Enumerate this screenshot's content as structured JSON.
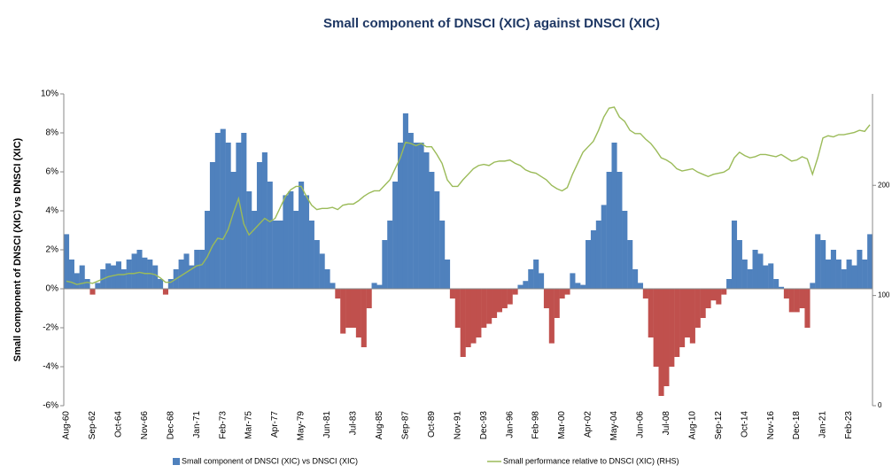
{
  "chart_data": {
    "type": "bar-line",
    "title": "Small component of DNSCI (XIC) against DNSCI (XIC)",
    "y_label": "Small component of DNSCI (XIC) vs DNSCI (XIC)",
    "categories": [
      "Aug-60",
      null,
      null,
      null,
      null,
      "Sep-62",
      null,
      null,
      null,
      null,
      "Oct-64",
      null,
      null,
      null,
      null,
      "Nov-66",
      null,
      null,
      null,
      null,
      "Dec-68",
      null,
      null,
      null,
      null,
      "Jan-71",
      null,
      null,
      null,
      null,
      "Feb-73",
      null,
      null,
      null,
      null,
      "Mar-75",
      null,
      null,
      null,
      null,
      "Apr-77",
      null,
      null,
      null,
      null,
      "May-79",
      null,
      null,
      null,
      null,
      "Jun-81",
      null,
      null,
      null,
      null,
      "Jul-83",
      null,
      null,
      null,
      null,
      "Aug-85",
      null,
      null,
      null,
      null,
      "Sep-87",
      null,
      null,
      null,
      null,
      "Oct-89",
      null,
      null,
      null,
      null,
      "Nov-91",
      null,
      null,
      null,
      null,
      "Dec-93",
      null,
      null,
      null,
      null,
      "Jan-96",
      null,
      null,
      null,
      null,
      "Feb-98",
      null,
      null,
      null,
      null,
      "Mar-00",
      null,
      null,
      null,
      null,
      "Apr-02",
      null,
      null,
      null,
      null,
      "May-04",
      null,
      null,
      null,
      null,
      "Jun-06",
      null,
      null,
      null,
      null,
      "Jul-08",
      null,
      null,
      null,
      null,
      "Aug-10",
      null,
      null,
      null,
      null,
      "Sep-12",
      null,
      null,
      null,
      null,
      "Oct-14",
      null,
      null,
      null,
      null,
      "Nov-16",
      null,
      null,
      null,
      null,
      "Dec-18",
      null,
      null,
      null,
      null,
      "Jan-21",
      null,
      null,
      null,
      null,
      "Feb-23",
      null,
      null,
      null,
      null
    ],
    "series": [
      {
        "name": "Small component of DNSCI (XIC) vs DNSCI (XIC)",
        "kind": "bar",
        "color": "#4f81bd",
        "negative_color": "#c0504d",
        "values": [
          2.8,
          1.5,
          0.8,
          1.2,
          0.5,
          -0.3,
          0.3,
          1.0,
          1.3,
          1.2,
          1.4,
          1.0,
          1.5,
          1.8,
          2.0,
          1.6,
          1.5,
          1.2,
          0.5,
          -0.3,
          0.5,
          1.0,
          1.5,
          1.8,
          1.2,
          2.0,
          2.0,
          4.0,
          6.5,
          8.0,
          8.2,
          7.5,
          6.0,
          7.5,
          8.0,
          5.0,
          4.0,
          6.5,
          7.0,
          5.5,
          3.5,
          3.5,
          4.8,
          5.0,
          4.0,
          5.5,
          4.8,
          3.5,
          2.5,
          1.8,
          1.0,
          0.3,
          -0.5,
          -2.3,
          -2.0,
          -2.0,
          -2.5,
          -3.0,
          -1.0,
          0.3,
          0.2,
          2.5,
          3.5,
          5.5,
          7.5,
          9.0,
          8.0,
          7.5,
          7.5,
          7.0,
          6.0,
          5.0,
          3.5,
          1.5,
          -0.5,
          -2.0,
          -3.5,
          -3.0,
          -2.8,
          -2.5,
          -2.0,
          -1.8,
          -1.5,
          -1.2,
          -1.0,
          -0.8,
          -0.3,
          0.2,
          0.4,
          1.0,
          1.5,
          0.8,
          -1.0,
          -2.8,
          -1.5,
          -0.5,
          -0.3,
          0.8,
          0.3,
          0.2,
          2.5,
          3.0,
          3.5,
          4.3,
          6.0,
          7.5,
          6.0,
          4.0,
          2.5,
          1.0,
          0.3,
          -0.5,
          -2.5,
          -4.0,
          -5.5,
          -5.0,
          -4.0,
          -3.5,
          -3.0,
          -2.5,
          -2.8,
          -2.0,
          -1.5,
          -1.0,
          -0.6,
          -0.8,
          -0.3,
          0.5,
          3.5,
          2.5,
          1.5,
          1.0,
          2.0,
          1.8,
          1.2,
          1.3,
          0.5,
          0.1,
          -0.5,
          -1.2,
          -1.2,
          -1.0,
          -2.0,
          0.3,
          2.8,
          2.5,
          1.5,
          2.0,
          1.5,
          1.0,
          1.5,
          1.2,
          2.0,
          1.5,
          2.8
        ]
      },
      {
        "name": "Small performance relative to DNSCI (XIC) (RHS)",
        "kind": "line",
        "axis": "y2",
        "color": "#9bbb59",
        "values": [
          113,
          112,
          110,
          111,
          112,
          111,
          113,
          115,
          117,
          118,
          119,
          119,
          120,
          120,
          121,
          120,
          120,
          119,
          116,
          112,
          112,
          115,
          118,
          121,
          124,
          127,
          128,
          135,
          145,
          152,
          151,
          160,
          175,
          188,
          165,
          155,
          160,
          165,
          170,
          167,
          170,
          180,
          190,
          196,
          199,
          199,
          190,
          182,
          178,
          179,
          179,
          180,
          178,
          182,
          183,
          183,
          186,
          190,
          193,
          195,
          195,
          200,
          205,
          215,
          225,
          239,
          238,
          236,
          238,
          235,
          235,
          228,
          220,
          205,
          199,
          199,
          205,
          210,
          215,
          218,
          219,
          218,
          221,
          222,
          222,
          223,
          220,
          218,
          214,
          212,
          211,
          208,
          205,
          200,
          197,
          195,
          198,
          210,
          220,
          230,
          235,
          240,
          250,
          262,
          270,
          271,
          262,
          258,
          250,
          247,
          247,
          242,
          238,
          232,
          225,
          223,
          220,
          215,
          213,
          214,
          215,
          212,
          210,
          208,
          210,
          211,
          212,
          215,
          225,
          230,
          227,
          225,
          226,
          228,
          228,
          227,
          226,
          228,
          225,
          222,
          223,
          226,
          224,
          210,
          225,
          243,
          245,
          244,
          246,
          246,
          247,
          248,
          250,
          249,
          255
        ]
      }
    ],
    "ylim": [
      -6,
      10
    ],
    "yticks": [
      {
        "value": -6,
        "label": "-6%"
      },
      {
        "value": -4,
        "label": "-4%"
      },
      {
        "value": -2,
        "label": "-2%"
      },
      {
        "value": 0,
        "label": "0%"
      },
      {
        "value": 2,
        "label": "2%"
      },
      {
        "value": 4,
        "label": "4%"
      },
      {
        "value": 6,
        "label": "6%"
      },
      {
        "value": 8,
        "label": "8%"
      },
      {
        "value": 10,
        "label": "10%"
      }
    ],
    "y2lim": [
      0,
      283
    ],
    "y2ticks": [
      0,
      100,
      200
    ]
  }
}
